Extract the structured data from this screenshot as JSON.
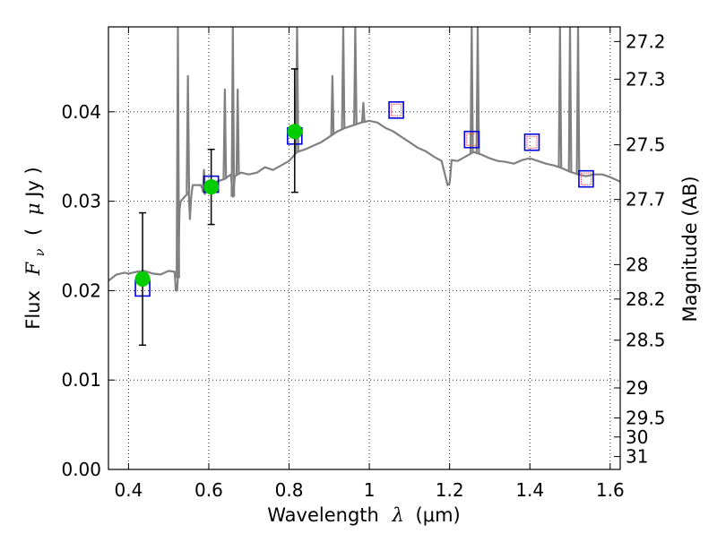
{
  "chart_data": {
    "type": "scatter",
    "title": "",
    "xlabel": "Wavelength",
    "xlabel_symbol": "λ",
    "xlabel_unit": "(μm)",
    "ylabel": "Flux",
    "ylabel_symbol": "F",
    "ylabel_subscript": "ν",
    "ylabel_unit_open": "(",
    "ylabel_unit_mu": "μ",
    "ylabel_unit_rest": "Jy )",
    "y2label": "Magnitude (AB)",
    "xlim": [
      0.35,
      1.625
    ],
    "ylim": [
      0.0,
      0.0495
    ],
    "grid": true,
    "x_ticks": [
      {
        "value": 0.4,
        "label": "0.4"
      },
      {
        "value": 0.6,
        "label": "0.6"
      },
      {
        "value": 0.8,
        "label": "0.8"
      },
      {
        "value": 1.0,
        "label": "1"
      },
      {
        "value": 1.2,
        "label": "1.2"
      },
      {
        "value": 1.4,
        "label": "1.4"
      },
      {
        "value": 1.6,
        "label": "1.6"
      }
    ],
    "y_ticks": [
      {
        "value": 0.0,
        "label": "0.00"
      },
      {
        "value": 0.01,
        "label": "0.01"
      },
      {
        "value": 0.02,
        "label": "0.02"
      },
      {
        "value": 0.03,
        "label": "0.03"
      },
      {
        "value": 0.04,
        "label": "0.04"
      }
    ],
    "magnitude_ticks": [
      {
        "label": "27.2"
      },
      {
        "label": "27.3"
      },
      {
        "label": "27.5"
      },
      {
        "label": "27.7"
      },
      {
        "label": "28"
      },
      {
        "label": "28.2"
      },
      {
        "label": "28.5"
      },
      {
        "label": "29"
      },
      {
        "label": "29.5"
      },
      {
        "label": "30"
      },
      {
        "label": "31"
      }
    ],
    "colors": {
      "spectrum": "#808080",
      "observed": "#00cc00",
      "model_box": "#0000dd",
      "model_inner": "#ff4444",
      "errorbar": "#000000",
      "grid": "#000000"
    },
    "series": [
      {
        "name": "observed",
        "points": [
          {
            "x": 0.435,
            "y": 0.0213,
            "yerr_low": 0.0139,
            "yerr_high": 0.0287
          },
          {
            "x": 0.606,
            "y": 0.0316,
            "yerr_low": 0.0274,
            "yerr_high": 0.0358
          },
          {
            "x": 0.814,
            "y": 0.0378,
            "yerr_low": 0.031,
            "yerr_high": 0.0448
          }
        ]
      },
      {
        "name": "model_photometry",
        "points": [
          {
            "x": 0.435,
            "y": 0.0203,
            "inner": false
          },
          {
            "x": 0.606,
            "y": 0.0319,
            "inner": false
          },
          {
            "x": 0.814,
            "y": 0.0373,
            "inner": false
          },
          {
            "x": 1.067,
            "y": 0.0402,
            "inner": true
          },
          {
            "x": 1.255,
            "y": 0.0369,
            "inner": true
          },
          {
            "x": 1.405,
            "y": 0.0366,
            "inner": true
          },
          {
            "x": 1.54,
            "y": 0.0325,
            "inner": true
          }
        ]
      }
    ],
    "spectrum": {
      "x": [
        0.35,
        0.37,
        0.39,
        0.4,
        0.42,
        0.44,
        0.46,
        0.48,
        0.5,
        0.515,
        0.518,
        0.521,
        0.524,
        0.527,
        0.53,
        0.55,
        0.553,
        0.556,
        0.56,
        0.58,
        0.59,
        0.6,
        0.61,
        0.62,
        0.64,
        0.655,
        0.66,
        0.665,
        0.68,
        0.7,
        0.72,
        0.74,
        0.76,
        0.78,
        0.8,
        0.82,
        0.84,
        0.86,
        0.88,
        0.9,
        0.92,
        0.94,
        0.96,
        0.98,
        1.0,
        1.02,
        1.04,
        1.06,
        1.08,
        1.1,
        1.12,
        1.14,
        1.16,
        1.18,
        1.195,
        1.2,
        1.205,
        1.22,
        1.24,
        1.26,
        1.28,
        1.3,
        1.32,
        1.34,
        1.36,
        1.38,
        1.4,
        1.42,
        1.44,
        1.46,
        1.48,
        1.5,
        1.52,
        1.54,
        1.56,
        1.58,
        1.6,
        1.625
      ],
      "y": [
        0.0211,
        0.0218,
        0.022,
        0.0219,
        0.0221,
        0.0222,
        0.0219,
        0.0218,
        0.0222,
        0.0221,
        0.02,
        0.02,
        0.0221,
        0.029,
        0.03,
        0.031,
        0.028,
        0.0305,
        0.0318,
        0.0318,
        0.0308,
        0.032,
        0.031,
        0.0322,
        0.0325,
        0.033,
        0.0305,
        0.0328,
        0.0332,
        0.033,
        0.0332,
        0.0338,
        0.0335,
        0.034,
        0.0345,
        0.0355,
        0.0358,
        0.0362,
        0.0366,
        0.0372,
        0.0378,
        0.0382,
        0.0385,
        0.0388,
        0.039,
        0.0388,
        0.0382,
        0.0378,
        0.0372,
        0.0366,
        0.036,
        0.0356,
        0.035,
        0.0345,
        0.0318,
        0.032,
        0.0346,
        0.0345,
        0.035,
        0.0355,
        0.0352,
        0.0348,
        0.0345,
        0.0344,
        0.0342,
        0.0346,
        0.0348,
        0.0345,
        0.0342,
        0.034,
        0.0337,
        0.0333,
        0.033,
        0.0328,
        0.033,
        0.033,
        0.0327,
        0.0322
      ],
      "emission_lines": [
        {
          "x": 0.523,
          "peak": 0.0495
        },
        {
          "x": 0.548,
          "peak": 0.044
        },
        {
          "x": 0.588,
          "peak": 0.0335
        },
        {
          "x": 0.64,
          "peak": 0.0425
        },
        {
          "x": 0.66,
          "peak": 0.0495
        },
        {
          "x": 0.672,
          "peak": 0.0425
        },
        {
          "x": 0.82,
          "peak": 0.0495
        },
        {
          "x": 0.908,
          "peak": 0.044
        },
        {
          "x": 0.935,
          "peak": 0.0495
        },
        {
          "x": 0.965,
          "peak": 0.0495
        },
        {
          "x": 0.985,
          "peak": 0.041
        },
        {
          "x": 1.255,
          "peak": 0.0495
        },
        {
          "x": 1.27,
          "peak": 0.0495
        },
        {
          "x": 1.475,
          "peak": 0.0495
        },
        {
          "x": 1.5,
          "peak": 0.0495
        },
        {
          "x": 1.52,
          "peak": 0.0495
        }
      ]
    }
  }
}
